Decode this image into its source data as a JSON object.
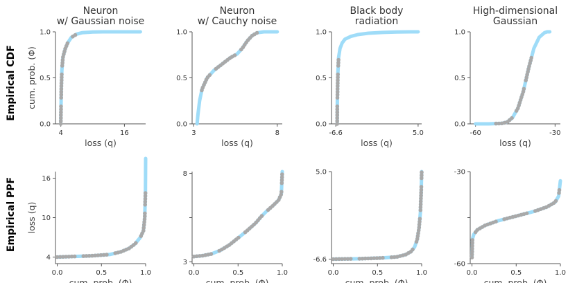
{
  "colors": {
    "fit": "#9fdcf8",
    "empirical": "#a9a9a9",
    "axis": "#555555"
  },
  "row_labels": [
    "Empirical CDF",
    "Empirical PPF"
  ],
  "chart_data": [
    {
      "id": "neuron-gaussian-cdf",
      "type": "line",
      "row": 0,
      "col": 0,
      "title": [
        "Neuron",
        "w/ Gaussian noise"
      ],
      "xlabel": "loss (q)",
      "ylabel": "cum. prob. (Φ)",
      "xlim": [
        3,
        20
      ],
      "ylim": [
        0,
        1
      ],
      "xticks": [
        4,
        16
      ],
      "xticklabels": [
        "4",
        "16"
      ],
      "yticks": [
        0,
        0.5,
        1
      ],
      "yticklabels": [
        "0.0",
        "0.5",
        "1.0"
      ],
      "x": [
        4.0,
        4.05,
        4.1,
        4.2,
        4.4,
        4.8,
        5.3,
        6,
        7,
        8,
        10,
        12,
        16,
        19
      ],
      "y": [
        0.0,
        0.18,
        0.38,
        0.58,
        0.72,
        0.81,
        0.88,
        0.94,
        0.975,
        0.99,
        0.998,
        1.0,
        1.0,
        1.0
      ],
      "markers": {
        "from": 0.0,
        "to": 0.6
      }
    },
    {
      "id": "neuron-cauchy-cdf",
      "type": "line",
      "row": 0,
      "col": 1,
      "title": [
        "Neuron",
        "w/ Cauchy noise"
      ],
      "xlabel": "loss (q)",
      "ylabel": "",
      "xlim": [
        2.9,
        8.3
      ],
      "ylim": [
        0,
        1
      ],
      "xticks": [
        3,
        8
      ],
      "xticklabels": [
        "3",
        "8"
      ],
      "yticks": [
        0,
        0.5,
        1
      ],
      "yticklabels": [
        "0.0",
        "0.5",
        "1.0"
      ],
      "x": [
        3.2,
        3.25,
        3.35,
        3.5,
        3.8,
        4.2,
        4.7,
        5.2,
        5.6,
        5.9,
        6.2,
        6.5,
        6.8,
        7.2,
        8.0
      ],
      "y": [
        0.0,
        0.1,
        0.25,
        0.38,
        0.5,
        0.58,
        0.65,
        0.72,
        0.76,
        0.82,
        0.9,
        0.96,
        0.99,
        1.0,
        1.0
      ],
      "markers": {
        "from": 0.25,
        "to": 0.9
      }
    },
    {
      "id": "blackbody-cdf",
      "type": "line",
      "row": 0,
      "col": 2,
      "title": [
        "Black body",
        "radiation"
      ],
      "xlabel": "loss (q)",
      "ylabel": "",
      "xlim": [
        -7.2,
        5.5
      ],
      "ylim": [
        0,
        1
      ],
      "xticks": [
        -6.6,
        5.0
      ],
      "xticklabels": [
        "-6.6",
        "5.0"
      ],
      "yticks": [
        0,
        0.5,
        1
      ],
      "yticklabels": [
        "0.0",
        "0.5",
        "1.0"
      ],
      "x": [
        -6.4,
        -6.38,
        -6.3,
        -6.2,
        -6.0,
        -5.7,
        -5.3,
        -4.5,
        -3.5,
        -2.0,
        0.0,
        2.0,
        4.0,
        5.0
      ],
      "y": [
        0.0,
        0.25,
        0.55,
        0.72,
        0.82,
        0.88,
        0.92,
        0.95,
        0.97,
        0.985,
        0.993,
        0.998,
        1.0,
        1.0
      ],
      "markers": {
        "from": 0.0,
        "to": 0.4
      }
    },
    {
      "id": "highdim-gaussian-cdf",
      "type": "line",
      "row": 0,
      "col": 3,
      "title": [
        "High-dimensional",
        "Gaussian"
      ],
      "xlabel": "loss (q)",
      "ylabel": "",
      "xlim": [
        -62,
        -28
      ],
      "ylim": [
        0,
        1
      ],
      "xticks": [
        -60,
        -30
      ],
      "xticklabels": [
        "-60",
        "-30"
      ],
      "yticks": [
        0,
        0.5,
        1
      ],
      "yticklabels": [
        "0.0",
        "0.5",
        "1.0"
      ],
      "x": [
        -60,
        -55,
        -50,
        -48,
        -46,
        -44,
        -42,
        -40,
        -38,
        -36,
        -34,
        -33,
        -32
      ],
      "y": [
        0.0,
        0.0,
        0.005,
        0.02,
        0.07,
        0.17,
        0.35,
        0.6,
        0.82,
        0.94,
        0.99,
        1.0,
        1.0
      ],
      "markers": {
        "from": 0.15,
        "to": 0.8
      }
    },
    {
      "id": "neuron-gaussian-ppf",
      "type": "line",
      "row": 1,
      "col": 0,
      "title": [],
      "xlabel": "cum. prob. (Φ)",
      "ylabel": "loss (q)",
      "xlim": [
        -0.02,
        1.0
      ],
      "ylim": [
        3,
        17
      ],
      "xticks": [
        0,
        0.5,
        1
      ],
      "xticklabels": [
        "0.0",
        "0.5",
        "1.0"
      ],
      "yticks": [
        4,
        10,
        16
      ],
      "yticklabels": [
        "4",
        "10",
        "16"
      ],
      "x": [
        0.0,
        0.2,
        0.4,
        0.6,
        0.72,
        0.81,
        0.88,
        0.94,
        0.975,
        0.99,
        0.998,
        1.0
      ],
      "y": [
        4.0,
        4.1,
        4.2,
        4.4,
        4.8,
        5.3,
        6,
        7,
        8,
        10,
        14,
        19
      ],
      "markers": {
        "from": 0.0,
        "to": 0.8
      }
    },
    {
      "id": "neuron-cauchy-ppf",
      "type": "line",
      "row": 1,
      "col": 1,
      "title": [],
      "xlabel": "cum. prob. (Φ)",
      "ylabel": "",
      "xlim": [
        -0.02,
        1.0
      ],
      "ylim": [
        2.9,
        8.1
      ],
      "xticks": [
        0,
        0.5,
        1
      ],
      "xticklabels": [
        "0.0",
        "0.5",
        "1.0"
      ],
      "yticks": [
        3,
        5.5,
        8
      ],
      "yticklabels": [
        "3",
        "",
        "8"
      ],
      "x": [
        0.0,
        0.1,
        0.2,
        0.3,
        0.4,
        0.5,
        0.6,
        0.7,
        0.76,
        0.82,
        0.9,
        0.96,
        0.99,
        1.0
      ],
      "y": [
        3.3,
        3.35,
        3.45,
        3.65,
        3.95,
        4.35,
        4.75,
        5.2,
        5.55,
        5.85,
        6.2,
        6.5,
        6.85,
        8.1
      ],
      "markers": {
        "from": 0.0,
        "to": 1.0
      }
    },
    {
      "id": "blackbody-ppf",
      "type": "line",
      "row": 1,
      "col": 2,
      "title": [],
      "xlabel": "cum. prob. (Φ)",
      "ylabel": "",
      "xlim": [
        -0.02,
        1.0
      ],
      "ylim": [
        -7.2,
        5.0
      ],
      "xticks": [
        0,
        0.5,
        1
      ],
      "xticklabels": [
        "0.0",
        "0.5",
        "1.0"
      ],
      "yticks": [
        -6.6,
        0,
        5.0
      ],
      "yticklabels": [
        "-6.6",
        "",
        "5.0"
      ],
      "x": [
        0.0,
        0.3,
        0.55,
        0.72,
        0.82,
        0.88,
        0.92,
        0.95,
        0.97,
        0.985,
        0.995,
        1.0
      ],
      "y": [
        -6.6,
        -6.55,
        -6.45,
        -6.3,
        -6.0,
        -5.6,
        -5.0,
        -4.0,
        -2.5,
        -0.5,
        2.5,
        5.0
      ],
      "markers": {
        "from": 0.0,
        "to": 1.0
      }
    },
    {
      "id": "highdim-gaussian-ppf",
      "type": "line",
      "row": 1,
      "col": 3,
      "title": [],
      "xlabel": "cum. prob. (Φ)",
      "ylabel": "",
      "xlim": [
        -0.02,
        1.0
      ],
      "ylim": [
        -60,
        -30
      ],
      "xticks": [
        0,
        0.5,
        1
      ],
      "xticklabels": [
        "0.0",
        "0.5",
        "1.0"
      ],
      "yticks": [
        -60,
        -45,
        -30
      ],
      "yticklabels": [
        "-60",
        "",
        "-30"
      ],
      "x": [
        0.0,
        0.005,
        0.02,
        0.06,
        0.15,
        0.3,
        0.5,
        0.7,
        0.85,
        0.94,
        0.98,
        1.0
      ],
      "y": [
        -58,
        -52,
        -50.5,
        -49,
        -47.5,
        -46,
        -44.5,
        -43,
        -41.5,
        -40,
        -38,
        -33
      ],
      "markers": {
        "from": 0.0,
        "to": 0.95
      }
    }
  ]
}
